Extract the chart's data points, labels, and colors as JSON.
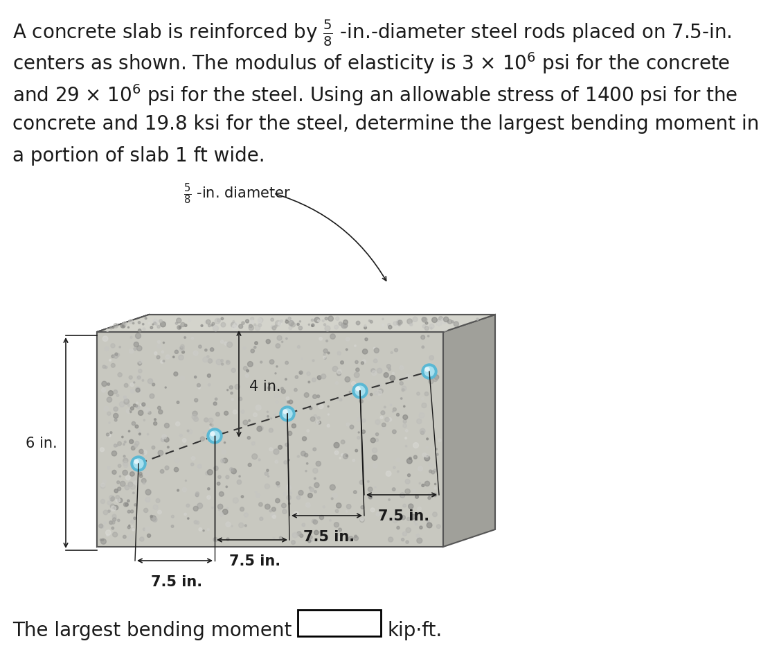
{
  "bg_color": "#ffffff",
  "text_color": "#1a1a1a",
  "title_lines": [
    "A concrete slab is reinforced by $\\frac{5}{8}$ -in.-diameter steel rods placed on 7.5-in.",
    "centers as shown. The modulus of elasticity is 3 × 10$^{6}$ psi for the concrete",
    "and 29 × 10$^{6}$ psi for the steel. Using an allowable stress of 1400 psi for the",
    "concrete and 19.8 ksi for the steel, determine the largest bending moment in",
    "a portion of slab 1 ft wide."
  ],
  "bottom_text": "The largest bending moment is",
  "bottom_unit": "kip·ft.",
  "slab_color": "#c8c8c0",
  "slab_color_dark": "#a0a09a",
  "slab_color_light": "#d8d8d0",
  "rod_color": "#7ec8e3",
  "dim_label_diameter": "$\\frac{5}{8}$ -in. diameter",
  "dim_4in": "4 in.",
  "dim_75_labels": [
    "7.5 in.",
    "7.5 in.",
    "7.5 in.",
    "7.5 in."
  ],
  "dim_6in": "6 in."
}
